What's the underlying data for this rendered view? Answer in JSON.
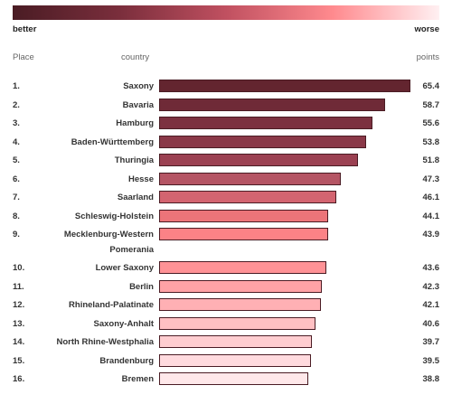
{
  "legend": {
    "better_label": "better",
    "worse_label": "worse",
    "gradient_colors": [
      "#4a1c24",
      "#7a2e3c",
      "#c05060",
      "#ff8a8e",
      "#fff0f2"
    ]
  },
  "header": {
    "place": "Place",
    "country": "country",
    "points": "points"
  },
  "chart_data": {
    "type": "bar",
    "orientation": "horizontal",
    "xlim": [
      0,
      65.4
    ],
    "rows": [
      {
        "place": "1.",
        "country": "Saxony",
        "points": 65.4,
        "value_label": "65.4",
        "color": "#63252f"
      },
      {
        "place": "2.",
        "country": "Bavaria",
        "points": 58.7,
        "value_label": "58.7",
        "color": "#6f2a37"
      },
      {
        "place": "3.",
        "country": "Hamburg",
        "points": 55.6,
        "value_label": "55.6",
        "color": "#7c3140"
      },
      {
        "place": "4.",
        "country": "Baden-Württemberg",
        "points": 53.8,
        "value_label": "53.8",
        "color": "#8a3848"
      },
      {
        "place": "5.",
        "country": "Thuringia",
        "points": 51.8,
        "value_label": "51.8",
        "color": "#9b4152"
      },
      {
        "place": "6.",
        "country": "Hesse",
        "points": 47.3,
        "value_label": "47.3",
        "color": "#b55564"
      },
      {
        "place": "7.",
        "country": "Saarland",
        "points": 46.1,
        "value_label": "46.1",
        "color": "#d36470"
      },
      {
        "place": "8.",
        "country": "Schleswig-Holstein",
        "points": 44.1,
        "value_label": "44.1",
        "color": "#ec7479"
      },
      {
        "place": "9.",
        "country": "Mecklenburg-Western Pomerania",
        "points": 43.9,
        "value_label": "43.9",
        "color": "#fb8286",
        "wrap": [
          "Mecklenburg-Western",
          "Pomerania"
        ]
      },
      {
        "place": "10.",
        "country": "Lower Saxony",
        "points": 43.6,
        "value_label": "43.6",
        "color": "#ff9296"
      },
      {
        "place": "11.",
        "country": "Berlin",
        "points": 42.3,
        "value_label": "42.3",
        "color": "#ffa2a6"
      },
      {
        "place": "12.",
        "country": "Rhineland-Palatinate",
        "points": 42.1,
        "value_label": "42.1",
        "color": "#ffb0b4"
      },
      {
        "place": "13.",
        "country": "Saxony-Anhalt",
        "points": 40.6,
        "value_label": "40.6",
        "color": "#ffc0c3"
      },
      {
        "place": "14.",
        "country": "North Rhine-Westphalia",
        "points": 39.7,
        "value_label": "39.7",
        "color": "#ffcdd0"
      },
      {
        "place": "15.",
        "country": "Brandenburg",
        "points": 39.5,
        "value_label": "39.5",
        "color": "#ffdade"
      },
      {
        "place": "16.",
        "country": "Bremen",
        "points": 38.8,
        "value_label": "38.8",
        "color": "#ffe8ea"
      }
    ]
  }
}
